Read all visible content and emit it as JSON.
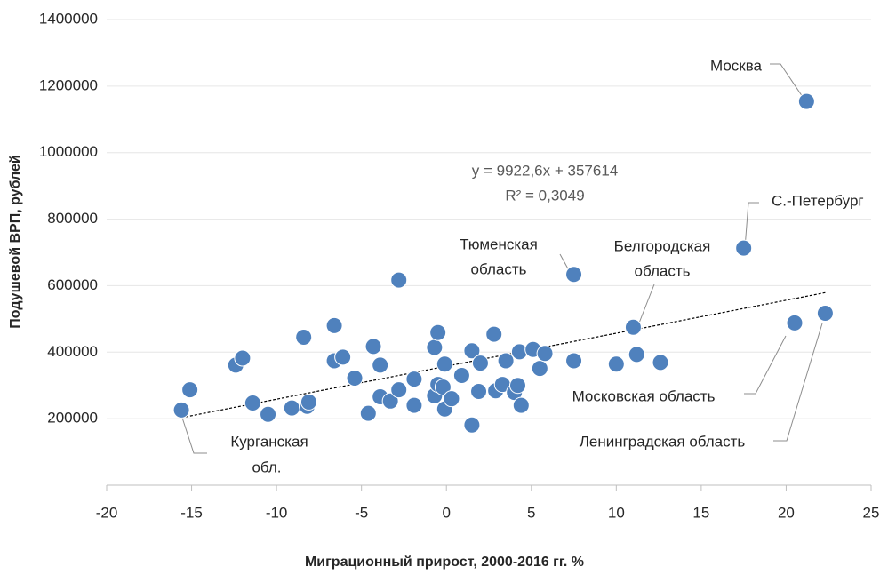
{
  "chart_data": {
    "type": "scatter",
    "xlabel": "Миграционный прирост, 2000-2016 гг. %",
    "ylabel": "Подушевой ВРП, рублей",
    "x": [
      -15.6,
      -15.1,
      -12.4,
      -12.0,
      -11.4,
      -10.5,
      -9.1,
      -8.4,
      -8.2,
      -8.1,
      -6.6,
      -6.6,
      -6.1,
      -5.4,
      -4.6,
      -4.3,
      -3.9,
      -3.9,
      -3.3,
      -2.8,
      -2.8,
      -1.9,
      -1.9,
      -0.7,
      -0.7,
      -0.5,
      -0.5,
      -0.2,
      -0.1,
      -0.1,
      0.3,
      0.9,
      1.5,
      1.5,
      1.9,
      2.0,
      2.8,
      2.9,
      3.3,
      3.5,
      4.0,
      4.2,
      4.3,
      4.4,
      5.1,
      5.5,
      5.8,
      7.5,
      7.5,
      10.0,
      11.0,
      11.2,
      12.6,
      17.5,
      20.5,
      21.2,
      22.3
    ],
    "series": [
      {
        "color": "#4f81bd",
        "values": [
          226000,
          287000,
          361000,
          382000,
          247000,
          213000,
          232000,
          445000,
          237000,
          250000,
          480000,
          374000,
          385000,
          322000,
          216000,
          417000,
          361000,
          266000,
          253000,
          617000,
          287000,
          319000,
          240000,
          414000,
          269000,
          459000,
          303000,
          295000,
          364000,
          229000,
          260000,
          330000,
          404000,
          181000,
          282000,
          367000,
          454000,
          284000,
          303000,
          374000,
          279000,
          300000,
          401000,
          240000,
          408000,
          351000,
          396000,
          634000,
          374000,
          364000,
          475000,
          393000,
          369000,
          713000,
          488000,
          1154000,
          517000
        ]
      }
    ],
    "trendline": {
      "x": [
        -15.6,
        22.3
      ],
      "values": [
        203000,
        579000
      ],
      "equation": "y = 9922,6x + 357614",
      "r2": "R² = 0,3049"
    },
    "annotations": [
      "Москва",
      "С.-Петербург",
      "Тюменская",
      "область",
      "Белгородская",
      "область",
      "Московская область",
      "Ленинградская область",
      "Курганская",
      "обл."
    ],
    "xlim": [
      -20,
      25
    ],
    "xticks": [
      -20,
      -15,
      -10,
      -5,
      0,
      5,
      10,
      15,
      20,
      25
    ],
    "ylim": [
      0,
      1400000
    ],
    "yticks": [
      200000,
      400000,
      600000,
      800000,
      1000000,
      1200000,
      1400000
    ],
    "grid": true
  }
}
